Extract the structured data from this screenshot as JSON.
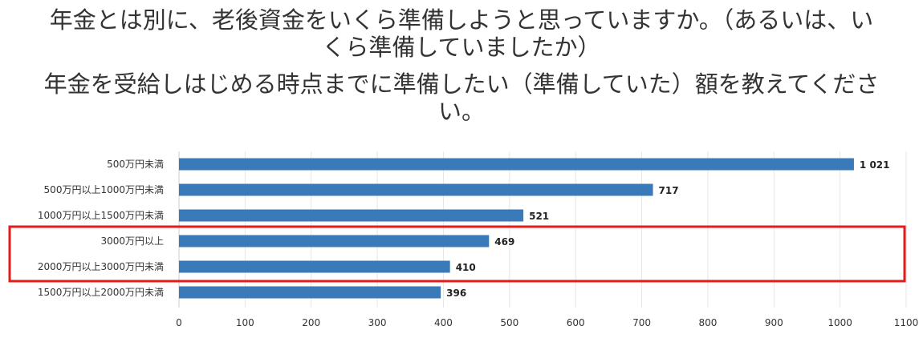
{
  "header": {
    "title_lines": [
      "年金とは別に、老後資金をいくら準備しようと思っていますか。（あるいは、い",
      "くら準備していましたか）"
    ],
    "subtitle_lines": [
      "年金を受給しはじめる時点までに準備したい（準備していた）額を教えてくださ",
      "い。"
    ]
  },
  "chart_data": {
    "type": "bar",
    "orientation": "horizontal",
    "categories": [
      "500万円未満",
      "500万円以上1000万円未満",
      "1000万円以上1500万円未満",
      "3000万円以上",
      "2000万円以上3000万円未満",
      "1500万円以上2000万円未満"
    ],
    "values": [
      1021,
      717,
      521,
      469,
      410,
      396
    ],
    "value_labels": [
      "1 021",
      "717",
      "521",
      "469",
      "410",
      "396"
    ],
    "xlim": [
      0,
      1100
    ],
    "x_ticks": [
      0,
      100,
      200,
      300,
      400,
      500,
      600,
      700,
      800,
      900,
      1000,
      1100
    ],
    "grid": "vertical",
    "bar_color": "#3a7ab8",
    "highlight": {
      "categories": [
        "3000万円以上",
        "2000万円以上3000万円未満"
      ],
      "color": "#e31b1b"
    }
  }
}
